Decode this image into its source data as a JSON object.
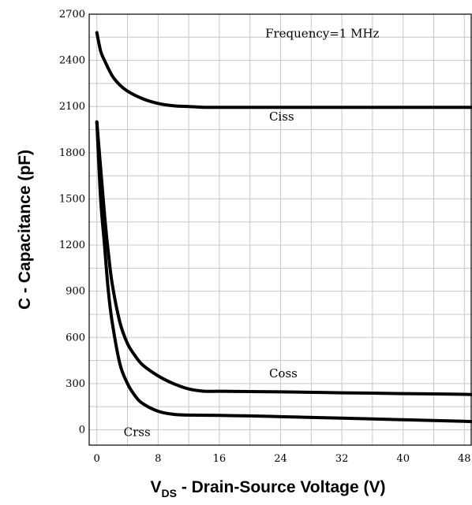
{
  "chart_data": {
    "type": "line",
    "annotation": "Frequency=1 MHz",
    "xlabel": "V",
    "xlabel_sub": "DS",
    "xlabel_rest": " - Drain-Source Voltage (V)",
    "ylabel": "C - Capacitance (pF)",
    "xlim": [
      -1,
      49
    ],
    "ylim": [
      -100,
      2700
    ],
    "x_ticks": [
      0,
      8,
      16,
      24,
      32,
      40,
      48
    ],
    "y_ticks": [
      0,
      300,
      600,
      900,
      1200,
      1500,
      1800,
      2100,
      2400,
      2700
    ],
    "x_minor_step": 4,
    "y_minor_step": 150,
    "grid": true,
    "series": [
      {
        "name": "Ciss",
        "x": [
          0,
          0.5,
          1,
          2,
          3,
          4,
          6,
          8,
          10,
          12,
          14,
          16,
          20,
          24,
          32,
          40,
          48,
          49
        ],
        "y": [
          2580,
          2460,
          2400,
          2300,
          2240,
          2200,
          2150,
          2120,
          2105,
          2100,
          2095,
          2095,
          2095,
          2095,
          2095,
          2095,
          2095,
          2095
        ]
      },
      {
        "name": "Coss",
        "x": [
          0,
          0.5,
          1,
          1.5,
          2,
          3,
          4,
          5,
          6,
          8,
          10,
          12,
          14,
          16,
          20,
          24,
          32,
          40,
          48,
          49
        ],
        "y": [
          2000,
          1700,
          1400,
          1150,
          950,
          700,
          560,
          480,
          420,
          350,
          300,
          265,
          250,
          250,
          248,
          246,
          240,
          235,
          230,
          228
        ]
      },
      {
        "name": "Crss",
        "x": [
          0,
          0.5,
          1,
          1.5,
          2,
          3,
          4,
          5,
          6,
          8,
          10,
          12,
          16,
          20,
          24,
          32,
          40,
          48,
          49
        ],
        "y": [
          2000,
          1500,
          1200,
          900,
          700,
          430,
          300,
          220,
          170,
          120,
          100,
          95,
          93,
          90,
          85,
          75,
          65,
          55,
          52
        ]
      }
    ]
  }
}
